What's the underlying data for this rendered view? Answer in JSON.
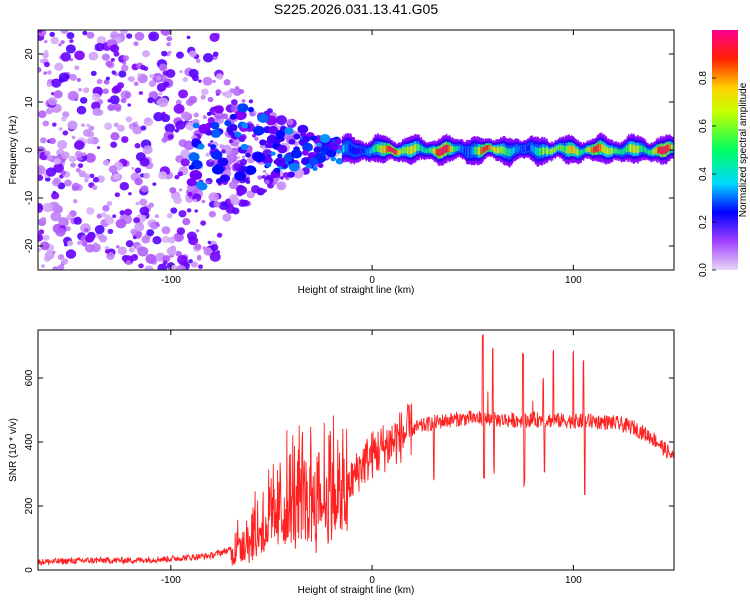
{
  "title": "S225.2026.031.13.41.G05",
  "chart_data": [
    {
      "type": "heatmap",
      "panel": "spectrogram",
      "xlabel": "Height of straight line (km)",
      "ylabel": "Frequency (Hz)",
      "xlim": [
        -166,
        150
      ],
      "ylim": [
        -25,
        25
      ],
      "xticks": [
        -100,
        0,
        100
      ],
      "yticks": [
        -20,
        -10,
        0,
        10,
        20
      ],
      "colorbar": {
        "label": "Normalized spectral amplitude",
        "range": [
          0,
          1
        ],
        "ticks": [
          0.0,
          0.2,
          0.4,
          0.6,
          0.8
        ],
        "colors": [
          "#e8d6f6",
          "#8800ff",
          "#0000ff",
          "#00d8ff",
          "#00ff60",
          "#c8ff00",
          "#ffd000",
          "#ff2000",
          "#ff0090"
        ]
      },
      "features": {
        "noise_region_x": [
          -166,
          -75
        ],
        "noise_region_freq": [
          -25,
          25
        ],
        "transition_x": [
          -75,
          -15
        ],
        "signal_band_x": [
          -15,
          150
        ],
        "signal_center_freq": 0,
        "signal_peak_x": [
          10,
          20,
          35,
          55,
          100,
          110,
          130,
          145
        ],
        "peak_amplitude": 0.95
      }
    },
    {
      "type": "line",
      "panel": "snr",
      "xlabel": "Height of straight line (km)",
      "ylabel": "SNR (10 * v/v)",
      "xlim": [
        -166,
        150
      ],
      "ylim": [
        0,
        750
      ],
      "xticks": [
        -100,
        0,
        100
      ],
      "yticks": [
        0,
        200,
        400,
        600
      ],
      "color": "#ff2020",
      "series": [
        {
          "name": "SNR",
          "x": [
            -166,
            -140,
            -120,
            -100,
            -80,
            -70,
            -60,
            -50,
            -40,
            -30,
            -20,
            -15,
            -10,
            -5,
            0,
            10,
            20,
            30,
            40,
            50,
            60,
            70,
            80,
            90,
            100,
            110,
            120,
            130,
            140,
            150
          ],
          "values": [
            25,
            30,
            30,
            35,
            45,
            65,
            110,
            160,
            210,
            240,
            250,
            220,
            280,
            330,
            360,
            400,
            440,
            460,
            470,
            475,
            470,
            468,
            470,
            468,
            465,
            465,
            460,
            445,
            410,
            350
          ]
        }
      ],
      "spikes_up": [
        [
          55,
          740
        ],
        [
          60,
          700
        ],
        [
          75,
          680
        ],
        [
          85,
          610
        ],
        [
          90,
          700
        ],
        [
          100,
          690
        ],
        [
          105,
          660
        ]
      ],
      "spikes_down": [
        [
          30,
          270
        ],
        [
          55,
          280
        ],
        [
          60,
          300
        ],
        [
          75,
          260
        ],
        [
          85,
          290
        ],
        [
          105,
          220
        ]
      ]
    }
  ]
}
